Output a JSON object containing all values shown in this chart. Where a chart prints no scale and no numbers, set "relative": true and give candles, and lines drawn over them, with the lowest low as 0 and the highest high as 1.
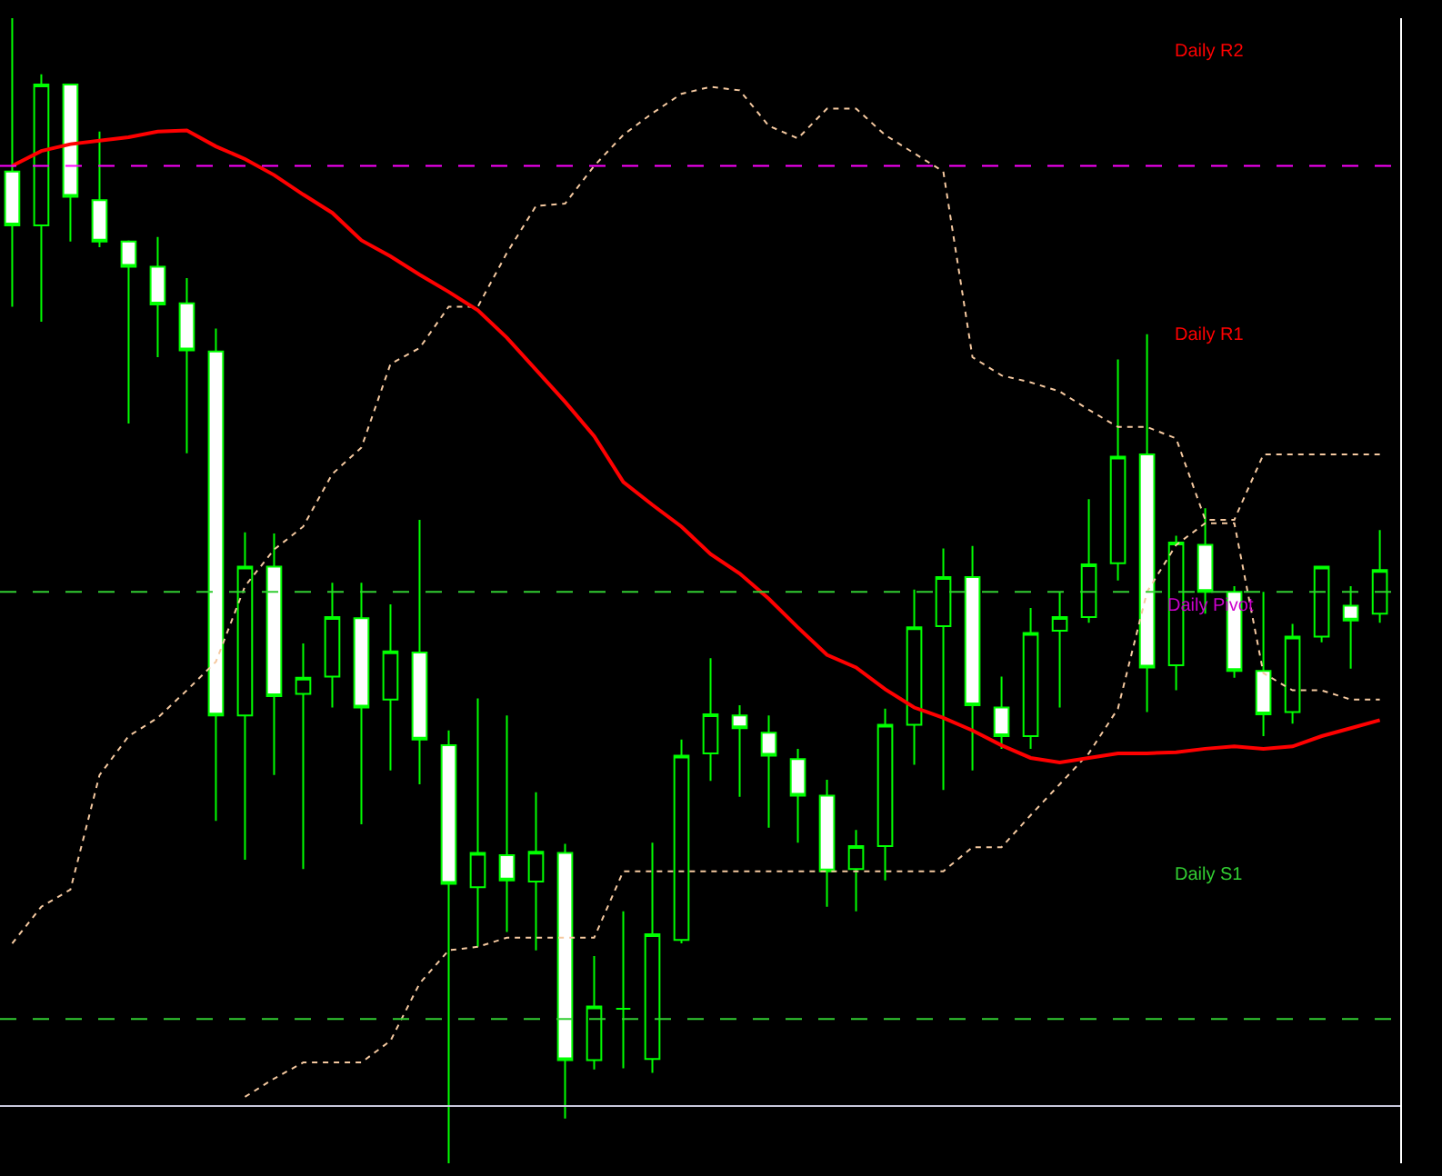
{
  "chart_data": {
    "type": "candlestick",
    "relative": true,
    "tick_labels": false,
    "categories": [
      null,
      null,
      null,
      null,
      null,
      null,
      null,
      null,
      null,
      null,
      null,
      null,
      null,
      null,
      null,
      null,
      null,
      null,
      null,
      null,
      null,
      null,
      null,
      null,
      null,
      null,
      null,
      null,
      null,
      null,
      null,
      null,
      null,
      null,
      null,
      null,
      null,
      null,
      null,
      null,
      null,
      null,
      null,
      null,
      null,
      null,
      null,
      null
    ],
    "series": [
      {
        "type": "line",
        "color": "#f5c9a0",
        "line_style": "dotted",
        "values": [
          0.192,
          0.224,
          0.239,
          0.339,
          0.373,
          0.389,
          0.413,
          0.438,
          0.504,
          0.536,
          0.556,
          0.602,
          0.625,
          0.698,
          0.712,
          0.748,
          0.748,
          0.795,
          0.836,
          0.838,
          0.871,
          0.898,
          0.917,
          0.934,
          0.94,
          0.937,
          0.906,
          0.895,
          0.921,
          0.921,
          0.898,
          0.882,
          0.866,
          0.704,
          0.688,
          0.682,
          0.674,
          0.658,
          0.643,
          0.643,
          0.633,
          0.562,
          0.562,
          0.619,
          0.619,
          0.619,
          0.619,
          0.619
        ]
      },
      {
        "type": "line",
        "color": "#f5c9a0",
        "line_style": "dotted",
        "values": [
          null,
          null,
          null,
          null,
          null,
          null,
          null,
          null,
          0.058,
          0.074,
          0.088,
          0.088,
          0.088,
          0.107,
          0.157,
          0.186,
          0.189,
          0.197,
          0.197,
          0.197,
          0.197,
          0.255,
          0.255,
          0.255,
          0.255,
          0.255,
          0.255,
          0.255,
          0.255,
          0.255,
          0.255,
          0.255,
          0.255,
          0.276,
          0.276,
          0.304,
          0.331,
          0.358,
          0.397,
          0.499,
          0.54,
          0.559,
          0.559,
          0.428,
          0.413,
          0.413,
          0.405,
          0.405
        ]
      },
      {
        "type": "line",
        "color": "#ff0000",
        "line_style": "solid",
        "values": [
          0.871,
          0.884,
          0.89,
          0.893,
          0.896,
          0.901,
          0.902,
          0.888,
          0.877,
          0.863,
          0.846,
          0.83,
          0.806,
          0.792,
          0.776,
          0.761,
          0.745,
          0.721,
          0.693,
          0.665,
          0.635,
          0.595,
          0.575,
          0.556,
          0.532,
          0.515,
          0.493,
          0.468,
          0.444,
          0.433,
          0.414,
          0.398,
          0.389,
          0.378,
          0.365,
          0.354,
          0.35,
          0.354,
          0.358,
          0.358,
          0.359,
          0.362,
          0.364,
          0.362,
          0.364,
          0.373,
          0.38,
          0.387
        ]
      },
      {
        "color": "#00ff00",
        "ohlc": [
          [
            0.866,
            1.0,
            0.748,
            0.819
          ],
          [
            0.819,
            0.951,
            0.735,
            0.942
          ],
          [
            0.942,
            0.942,
            0.805,
            0.844
          ],
          [
            0.841,
            0.901,
            0.8,
            0.805
          ],
          [
            0.805,
            0.806,
            0.646,
            0.783
          ],
          [
            0.783,
            0.809,
            0.704,
            0.75
          ],
          [
            0.751,
            0.773,
            0.62,
            0.71
          ],
          [
            0.709,
            0.729,
            0.299,
            0.391
          ],
          [
            0.391,
            0.551,
            0.265,
            0.521
          ],
          [
            0.521,
            0.55,
            0.339,
            0.408
          ],
          [
            0.41,
            0.454,
            0.257,
            0.424
          ],
          [
            0.425,
            0.507,
            0.398,
            0.477
          ],
          [
            0.476,
            0.507,
            0.296,
            0.398
          ],
          [
            0.405,
            0.488,
            0.343,
            0.447
          ],
          [
            0.446,
            0.562,
            0.331,
            0.37
          ],
          [
            0.365,
            0.378,
            0.0,
            0.244
          ],
          [
            0.241,
            0.406,
            0.189,
            0.271
          ],
          [
            0.269,
            0.391,
            0.202,
            0.247
          ],
          [
            0.246,
            0.324,
            0.186,
            0.272
          ],
          [
            0.271,
            0.279,
            0.039,
            0.09
          ],
          [
            0.09,
            0.181,
            0.082,
            0.137
          ],
          [
            0.135,
            0.22,
            0.083,
            0.135
          ],
          [
            0.091,
            0.28,
            0.079,
            0.2
          ],
          [
            0.195,
            0.37,
            0.192,
            0.356
          ],
          [
            0.358,
            0.441,
            0.334,
            0.392
          ],
          [
            0.391,
            0.4,
            0.32,
            0.38
          ],
          [
            0.376,
            0.391,
            0.293,
            0.356
          ],
          [
            0.353,
            0.362,
            0.28,
            0.321
          ],
          [
            0.321,
            0.335,
            0.224,
            0.255
          ],
          [
            0.257,
            0.291,
            0.22,
            0.277
          ],
          [
            0.277,
            0.397,
            0.247,
            0.383
          ],
          [
            0.383,
            0.501,
            0.348,
            0.468
          ],
          [
            0.469,
            0.537,
            0.326,
            0.512
          ],
          [
            0.512,
            0.539,
            0.343,
            0.4
          ],
          [
            0.398,
            0.425,
            0.362,
            0.373
          ],
          [
            0.373,
            0.485,
            0.362,
            0.463
          ],
          [
            0.465,
            0.499,
            0.398,
            0.477
          ],
          [
            0.477,
            0.58,
            0.472,
            0.523
          ],
          [
            0.524,
            0.702,
            0.509,
            0.617
          ],
          [
            0.619,
            0.724,
            0.394,
            0.433
          ],
          [
            0.435,
            0.548,
            0.413,
            0.542
          ],
          [
            0.54,
            0.572,
            0.48,
            0.499
          ],
          [
            0.499,
            0.504,
            0.424,
            0.43
          ],
          [
            0.43,
            0.499,
            0.373,
            0.392
          ],
          [
            0.394,
            0.471,
            0.384,
            0.46
          ],
          [
            0.46,
            0.521,
            0.455,
            0.521
          ],
          [
            0.487,
            0.504,
            0.432,
            0.474
          ],
          [
            0.48,
            0.553,
            0.472,
            0.518
          ]
        ]
      }
    ],
    "ref_lines": [
      {
        "axis": "y",
        "value": 0.871,
        "color": "#ff00ff",
        "line_style": "dashed"
      },
      {
        "axis": "y",
        "value": 0.499,
        "color": "#32cd32",
        "line_style": "dashed"
      },
      {
        "axis": "y",
        "value": 0.126,
        "color": "#32cd32",
        "line_style": "dashed"
      },
      {
        "axis": "y",
        "value": 0.05,
        "color": "#c8c8dc",
        "line_style": "solid"
      }
    ],
    "annotations": [
      "Daily R2",
      "Daily R1",
      "Daily Pivot",
      "Daily S1"
    ]
  }
}
